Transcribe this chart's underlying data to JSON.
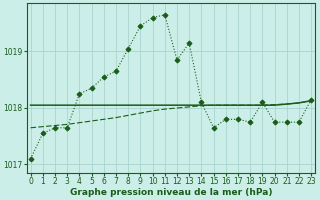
{
  "xlabel": "Graphe pression niveau de la mer (hPa)",
  "background_color": "#cceee8",
  "grid_color": "#aad4ce",
  "line_color": "#1a5c1a",
  "hours": [
    0,
    1,
    2,
    3,
    4,
    5,
    6,
    7,
    8,
    9,
    10,
    11,
    12,
    13,
    14,
    15,
    16,
    17,
    18,
    19,
    20,
    21,
    22,
    23
  ],
  "main_data": [
    1017.1,
    1017.55,
    1017.65,
    1017.65,
    1018.25,
    1018.35,
    1018.55,
    1018.65,
    1019.05,
    1019.45,
    1019.6,
    1019.65,
    1018.85,
    1019.15,
    1018.1,
    1017.65,
    1017.8,
    1017.8,
    1017.75,
    1018.1,
    1017.75,
    1017.75,
    1017.75,
    1018.15
  ],
  "flat_line": [
    1018.05,
    1018.05,
    1018.05,
    1018.05,
    1018.05,
    1018.05,
    1018.05,
    1018.05,
    1018.05,
    1018.05,
    1018.05,
    1018.05,
    1018.05,
    1018.05,
    1018.05,
    1018.05,
    1018.05,
    1018.05,
    1018.05,
    1018.05,
    1018.05,
    1018.07,
    1018.09,
    1018.13
  ],
  "rising_line": [
    1017.65,
    1017.67,
    1017.69,
    1017.71,
    1017.74,
    1017.77,
    1017.8,
    1017.83,
    1017.87,
    1017.91,
    1017.95,
    1017.98,
    1018.0,
    1018.02,
    1018.04,
    1018.05,
    1018.05,
    1018.05,
    1018.05,
    1018.05,
    1018.06,
    1018.07,
    1018.09,
    1018.13
  ],
  "ylim": [
    1016.85,
    1019.85
  ],
  "yticks": [
    1017,
    1018,
    1019
  ],
  "xticks": [
    0,
    1,
    2,
    3,
    4,
    5,
    6,
    7,
    8,
    9,
    10,
    11,
    12,
    13,
    14,
    15,
    16,
    17,
    18,
    19,
    20,
    21,
    22,
    23
  ],
  "tick_fontsize": 5.5,
  "xlabel_fontsize": 6.5
}
